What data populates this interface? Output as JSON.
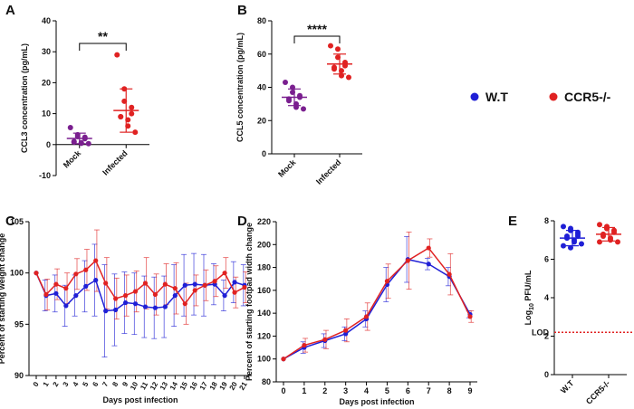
{
  "colors": {
    "wt": "#1f1fd6",
    "ccr5": "#e02222",
    "purple": "#7a1f8f",
    "red": "#e02222",
    "lod": "#e02222"
  },
  "legend": {
    "items": [
      {
        "label": "W.T",
        "color": "#1f1fd6"
      },
      {
        "label": "CCR5-/-",
        "color": "#e02222"
      }
    ]
  },
  "chart_data": [
    {
      "panel": "A",
      "type": "scatter",
      "ylabel": "CCL3 concentration (pg/mL)",
      "ylim": [
        -10,
        40
      ],
      "yticks": [
        -10,
        0,
        10,
        20,
        30,
        40
      ],
      "categories": [
        "Mock",
        "Infected"
      ],
      "significance": "**",
      "groups": [
        {
          "name": "Mock",
          "color": "#7a1f8f",
          "mean": 2,
          "sd": 1.7,
          "points": [
            5.5,
            3.2,
            2.6,
            2.4,
            1.9,
            1.0,
            0.8,
            0.6,
            0.4,
            0.3
          ]
        },
        {
          "name": "Infected",
          "color": "#e02222",
          "mean": 11,
          "sd": 7,
          "points": [
            29,
            18,
            14,
            12,
            10,
            9,
            9,
            8,
            6,
            4
          ]
        }
      ]
    },
    {
      "panel": "B",
      "type": "scatter",
      "ylabel": "CCL5 concentration (pg/mL)",
      "ylim": [
        0,
        80
      ],
      "yticks": [
        0,
        20,
        40,
        60,
        80
      ],
      "categories": [
        "Mock",
        "Infected"
      ],
      "significance": "****",
      "groups": [
        {
          "name": "Mock",
          "color": "#7a1f8f",
          "mean": 34,
          "sd": 5,
          "points": [
            43,
            40,
            37,
            35,
            34,
            33,
            32,
            30,
            28,
            27
          ]
        },
        {
          "name": "Infected",
          "color": "#e02222",
          "mean": 54,
          "sd": 6,
          "points": [
            65,
            63,
            58,
            55,
            53,
            52,
            51,
            50,
            47,
            46
          ]
        }
      ]
    },
    {
      "panel": "C",
      "type": "line",
      "ylabel": "Percent of starting weight change",
      "xlabel": "Days post infection",
      "ylim": [
        90,
        105
      ],
      "yticks": [
        90,
        95,
        100,
        105
      ],
      "x": [
        0,
        1,
        2,
        3,
        4,
        5,
        6,
        7,
        8,
        9,
        10,
        11,
        12,
        13,
        14,
        15,
        16,
        17,
        18,
        19,
        20,
        21
      ],
      "series": [
        {
          "name": "W.T",
          "color": "#1f1fd6",
          "values": [
            100,
            97.8,
            98,
            96.8,
            97.8,
            98.7,
            99.3,
            96.3,
            96.4,
            97.1,
            97,
            96.7,
            96.6,
            96.7,
            97.8,
            98.8,
            98.9,
            98.8,
            98.9,
            97.8,
            99.1,
            98.8
          ],
          "err": [
            0,
            1.5,
            1.8,
            2,
            2,
            2.5,
            3.5,
            4.5,
            3.5,
            3,
            3,
            3,
            3,
            3,
            3,
            3,
            3,
            3,
            2,
            1.5,
            2,
            2
          ]
        },
        {
          "name": "CCR5-/-",
          "color": "#e02222",
          "values": [
            100,
            97.9,
            98.9,
            98.5,
            99.9,
            100.3,
            101.2,
            99,
            97.5,
            97.8,
            98.2,
            99,
            97.9,
            98.9,
            98.5,
            97,
            98.3,
            98.8,
            99.2,
            100,
            98.1,
            98.6
          ],
          "err": [
            0,
            1.5,
            1.5,
            1.5,
            1.5,
            2,
            3,
            2.5,
            2,
            2,
            2,
            2.5,
            2,
            2,
            2.5,
            2,
            1.5,
            1.5,
            1.5,
            1.5,
            1.5,
            1.5
          ]
        }
      ]
    },
    {
      "panel": "D",
      "type": "line",
      "ylabel": "Percent of starting footpad width change",
      "xlabel": "Days post infection",
      "ylim": [
        80,
        220
      ],
      "yticks": [
        80,
        100,
        120,
        140,
        160,
        180,
        200,
        220
      ],
      "x": [
        0,
        1,
        2,
        3,
        4,
        5,
        6,
        7,
        8,
        9
      ],
      "series": [
        {
          "name": "W.T",
          "color": "#1f1fd6",
          "values": [
            100,
            110,
            116,
            122,
            135,
            165,
            187,
            183,
            172,
            139
          ],
          "err": [
            0,
            5,
            6,
            6,
            7,
            15,
            20,
            5,
            8,
            3
          ]
        },
        {
          "name": "CCR5-/-",
          "color": "#e02222",
          "values": [
            100,
            112,
            117,
            125,
            137,
            168,
            186,
            197,
            174,
            137
          ],
          "err": [
            0,
            6,
            8,
            10,
            12,
            15,
            25,
            8,
            18,
            5
          ]
        }
      ]
    },
    {
      "panel": "E",
      "type": "scatter",
      "ylabel": "Log10 PFU/mL",
      "ylim": [
        0,
        8
      ],
      "yticks": [
        0,
        2,
        4,
        6,
        8
      ],
      "categories": [
        "W.T",
        "CCR5-/-"
      ],
      "lod_label": "LOD",
      "lod_value": 2.2,
      "groups": [
        {
          "name": "W.T",
          "color": "#1f1fd6",
          "mean": 7.1,
          "sd": 0.4,
          "points": [
            7.7,
            7.6,
            7.5,
            7.4,
            7.3,
            7.2,
            7.1,
            7.0,
            6.9,
            6.8,
            6.7,
            6.6,
            7.5,
            7.2
          ]
        },
        {
          "name": "CCR5-/-",
          "color": "#e02222",
          "mean": 7.3,
          "sd": 0.35,
          "points": [
            7.8,
            7.7,
            7.6,
            7.5,
            7.4,
            7.3,
            7.2,
            7.1,
            7.0,
            6.9,
            6.9,
            7.6
          ]
        }
      ]
    }
  ]
}
